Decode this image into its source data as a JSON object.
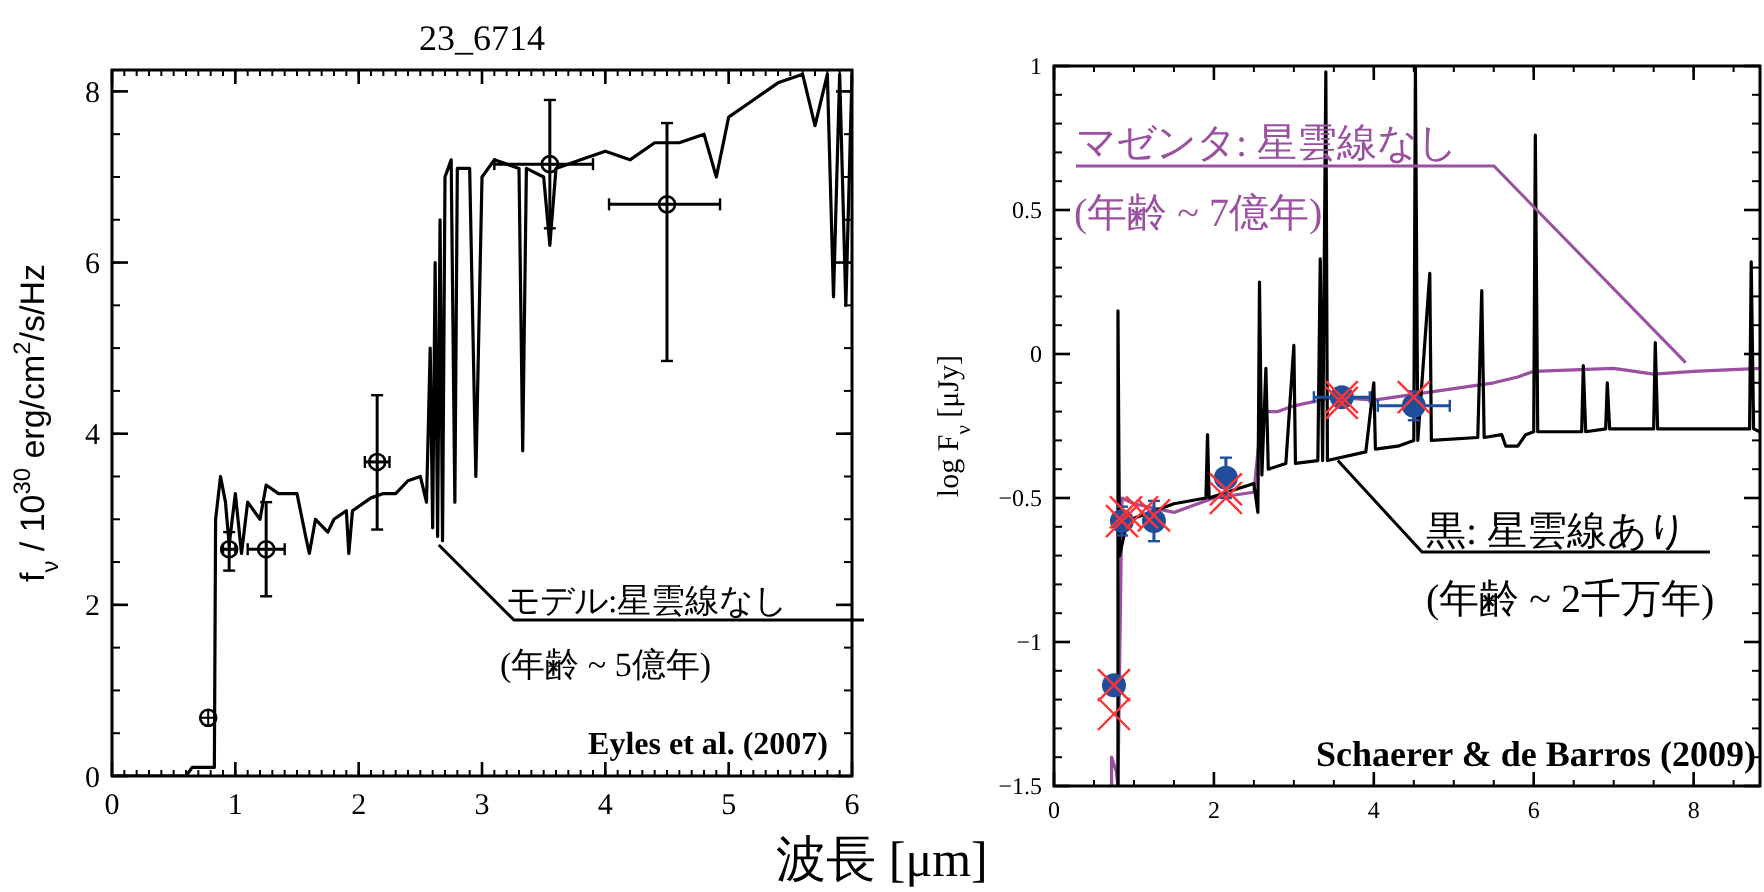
{
  "chart_data": [
    {
      "type": "line",
      "title": "23_6714",
      "ylabel": "f$_{ν}$ / 10$^{30}$ erg/cm$^{2}$/s/Hz",
      "xlim": [
        0,
        6
      ],
      "ylim": [
        0,
        8.25
      ],
      "xticks": [
        0,
        1,
        2,
        3,
        4,
        5,
        6
      ],
      "yticks": [
        0,
        2,
        4,
        6,
        8
      ],
      "grid": false,
      "series": [
        {
          "type": "line",
          "color": "#000000",
          "x": [
            0,
            0.6,
            0.65,
            0.8,
            0.83,
            0.84,
            0.88,
            0.92,
            0.95,
            1.0,
            1.05,
            1.1,
            1.2,
            1.25,
            1.35,
            1.5,
            1.57,
            1.6,
            1.65,
            1.75,
            1.8,
            1.9,
            1.92,
            1.95,
            2.1,
            2.2,
            2.3,
            2.4,
            2.5,
            2.55,
            2.58,
            2.6,
            2.62,
            2.64,
            2.66,
            2.68,
            2.7,
            2.75,
            2.78,
            2.8,
            2.9,
            2.95,
            3.0,
            3.1,
            3.3,
            3.33,
            3.36,
            3.5,
            3.55,
            3.6,
            3.8,
            4.0,
            4.2,
            4.4,
            4.6,
            4.8,
            4.9,
            5.0,
            5.2,
            5.4,
            5.6,
            5.7,
            5.8,
            5.85,
            5.9,
            5.95,
            6.0
          ],
          "values": [
            0,
            0,
            0.1,
            0.1,
            0.1,
            3.0,
            3.5,
            3.2,
            2.7,
            3.3,
            2.6,
            3.2,
            3.0,
            3.4,
            3.3,
            3.3,
            2.8,
            2.6,
            3.0,
            2.85,
            3.0,
            3.1,
            2.6,
            3.1,
            3.25,
            3.3,
            3.3,
            3.45,
            3.5,
            3.2,
            5.0,
            2.9,
            6.0,
            2.8,
            6.5,
            2.75,
            7.0,
            7.2,
            3.2,
            7.1,
            7.1,
            3.5,
            7.0,
            7.2,
            7.1,
            3.8,
            7.1,
            7.0,
            6.2,
            7.1,
            7.2,
            7.3,
            7.2,
            7.4,
            7.4,
            7.5,
            7.0,
            7.7,
            7.9,
            8.1,
            8.2,
            7.6,
            8.2,
            5.6,
            8.2,
            5.5,
            8.2
          ]
        },
        {
          "type": "scatter",
          "color": "#000000",
          "marker": "circle",
          "x": [
            0.78,
            0.95,
            1.25,
            2.15,
            3.55,
            4.5
          ],
          "values": [
            0.68,
            2.65,
            2.65,
            3.67,
            7.15,
            6.68
          ],
          "errors": [
            null,
            [
              2.4,
              2.85
            ],
            [
              2.1,
              3.2
            ],
            [
              2.88,
              4.45
            ],
            [
              6.4,
              7.9
            ],
            [
              4.85,
              7.63
            ]
          ],
          "xerrors": [
            null,
            0.05,
            0.15,
            [
              2.05,
              2.25
            ],
            [
              3.1,
              3.9
            ],
            [
              4.03,
              4.93
            ]
          ]
        }
      ],
      "annotations": [
        {
          "text": "モデル:星雲線なし",
          "x": 2.65,
          "y": 2.7
        },
        "(年齢 ~ 5億年)",
        "Eyles et al. (2007)"
      ]
    },
    {
      "type": "line",
      "xlabel": "波長 [μm]",
      "ylabel": "log F$_{ν}$ [μJy]",
      "xlim": [
        0,
        8.83
      ],
      "ylim": [
        -1.5,
        1
      ],
      "xticks": [
        0,
        2,
        4,
        6,
        8
      ],
      "yticks": [
        {
          "value": -1.5,
          "label": "−1.5"
        },
        {
          "value": -1,
          "label": "−1"
        },
        {
          "value": -0.5,
          "label": "−0.5"
        },
        0,
        0.5,
        1
      ],
      "grid": false,
      "series": [
        {
          "type": "line",
          "color": "#9b4fa0",
          "x": [
            0.72,
            0.72,
            0.78,
            0.8,
            0.85,
            1.0,
            1.5,
            2.0,
            2.5,
            2.6,
            2.8,
            3.0,
            3.5,
            4.0,
            4.5,
            5.0,
            5.5,
            5.8,
            6.0,
            7.0,
            7.5,
            8.0,
            8.83
          ],
          "values": [
            -1.5,
            -1.4,
            -1.45,
            -1.5,
            -0.5,
            -0.52,
            -0.55,
            -0.5,
            -0.48,
            -0.2,
            -0.2,
            -0.18,
            -0.15,
            -0.16,
            -0.14,
            -0.12,
            -0.1,
            -0.08,
            -0.06,
            -0.05,
            -0.07,
            -0.06,
            -0.05
          ]
        },
        {
          "type": "line",
          "color": "#000000",
          "x": [
            0.8,
            0.8,
            0.82,
            0.9,
            1.0,
            1.5,
            1.9,
            1.92,
            1.94,
            2.5,
            2.55,
            2.57,
            2.6,
            2.65,
            2.68,
            2.9,
            3.0,
            3.02,
            3.3,
            3.33,
            3.36,
            3.4,
            3.42,
            3.9,
            4.0,
            4.02,
            4.3,
            4.5,
            4.52,
            4.55,
            4.7,
            4.72,
            5.3,
            5.35,
            5.38,
            5.6,
            5.65,
            5.8,
            5.9,
            6.0,
            6.02,
            6.05,
            6.6,
            6.62,
            6.65,
            6.9,
            6.92,
            6.95,
            7.5,
            7.52,
            7.55,
            8.7,
            8.72,
            8.75,
            8.83
          ],
          "values": [
            -1.5,
            0.15,
            -0.7,
            -0.6,
            -0.57,
            -0.52,
            -0.5,
            -0.28,
            -0.5,
            -0.45,
            -0.55,
            0.25,
            -0.42,
            -0.05,
            -0.4,
            -0.38,
            0.03,
            -0.38,
            -0.37,
            0.33,
            -0.37,
            0.98,
            -0.37,
            -0.34,
            -0.1,
            -0.33,
            -0.32,
            -0.3,
            1.0,
            -0.3,
            0.28,
            -0.3,
            -0.29,
            0.22,
            -0.29,
            -0.28,
            -0.32,
            -0.32,
            -0.28,
            -0.27,
            0.76,
            -0.27,
            -0.27,
            -0.04,
            -0.27,
            -0.26,
            -0.1,
            -0.26,
            -0.26,
            0.04,
            -0.26,
            -0.26,
            0.32,
            -0.26,
            -0.27
          ]
        },
        {
          "type": "scatter",
          "color": "#1f4e9c",
          "marker": "circle",
          "x": [
            0.75,
            0.85,
            1.25,
            2.15,
            3.6,
            4.5
          ],
          "values": [
            -1.15,
            -0.58,
            -0.58,
            -0.43,
            -0.15,
            -0.18
          ],
          "errors": [
            null,
            0.05,
            0.07,
            0.07,
            0.03,
            0.05
          ],
          "xerrors": [
            null,
            null,
            0.1,
            null,
            0.35,
            0.45
          ]
        },
        {
          "type": "scatter",
          "color": "#ff3333",
          "marker": "cross",
          "x": [
            0.75,
            0.75,
            0.85,
            0.9,
            1.1,
            1.25,
            2.15,
            2.15,
            3.6,
            3.6,
            4.5
          ],
          "values": [
            -1.15,
            -1.25,
            -0.58,
            -0.55,
            -0.55,
            -0.56,
            -0.47,
            -0.5,
            -0.15,
            -0.17,
            -0.15
          ]
        }
      ],
      "annotations": [
        {
          "text": "マゼンタ: 星雲線なし",
          "x": 7.9,
          "y": -0.03
        },
        "(年齢 ~ 7億年)",
        {
          "text": "黒: 星雲線あり",
          "x": 3.55,
          "y": -0.37
        },
        "(年齢 ~ 2千万年)",
        "Schaerer & de Barros (2009)"
      ]
    }
  ]
}
